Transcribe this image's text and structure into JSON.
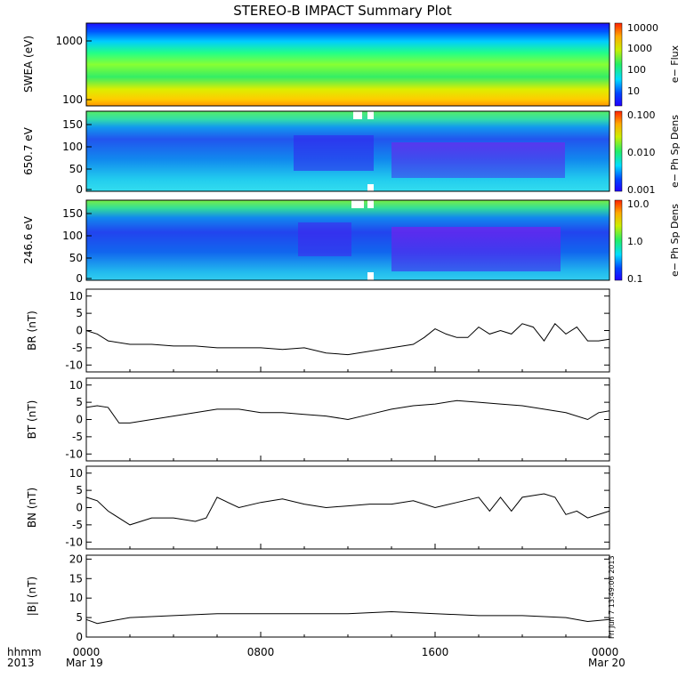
{
  "title": "STEREO-B IMPACT Summary Plot",
  "footer": {
    "hhmm": "hhmm",
    "year": "2013",
    "x_ticks": [
      "0000",
      "0800",
      "1600",
      "0000"
    ],
    "x_dates": [
      "Mar 19",
      "Mar 20"
    ],
    "stamp": "Fri Jun  7 13:49:06 2013"
  },
  "chart_data": [
    {
      "type": "heatmap",
      "ylabel": "SWEA (eV)",
      "yticks": [
        "1000",
        "100"
      ],
      "ylog": true,
      "colorbar": {
        "label": "e− Flux",
        "ticks": [
          "10000",
          "1000",
          "100",
          "10"
        ],
        "log": true,
        "range": [
          3,
          15000
        ]
      }
    },
    {
      "type": "heatmap",
      "ylabel": "650.7 eV",
      "yticks": [
        "150",
        "100",
        "50",
        "0"
      ],
      "ylim": [
        0,
        180
      ],
      "colorbar": {
        "label": "e− Ph Sp Dens",
        "ticks": [
          "0.100",
          "0.010",
          "0.001"
        ],
        "log": true,
        "range": [
          0.001,
          0.1
        ]
      }
    },
    {
      "type": "heatmap",
      "ylabel": "246.6 eV",
      "yticks": [
        "150",
        "100",
        "50",
        "0"
      ],
      "ylim": [
        0,
        180
      ],
      "colorbar": {
        "label": "e− Ph Sp Dens",
        "ticks": [
          "10.0",
          "1.0",
          "0.1"
        ],
        "log": true,
        "range": [
          0.1,
          10
        ]
      }
    },
    {
      "type": "line",
      "ylabel": "BR (nT)",
      "ylim": [
        -12,
        12
      ],
      "yticks": [
        "10",
        "5",
        "0",
        "-5",
        "-10"
      ],
      "x_hours": [
        0,
        0.5,
        1,
        2,
        3,
        4,
        5,
        6,
        7,
        8,
        9,
        10,
        11,
        12,
        13,
        14,
        15,
        15.5,
        16,
        16.5,
        17,
        17.5,
        18,
        18.5,
        19,
        19.5,
        20,
        20.5,
        21,
        21.5,
        22,
        22.5,
        23,
        23.5,
        24
      ],
      "values": [
        0,
        -1,
        -3,
        -4,
        -4,
        -4.5,
        -4.5,
        -5,
        -5,
        -5,
        -5.5,
        -5,
        -6.5,
        -7,
        -6,
        -5,
        -4,
        -2,
        0.5,
        -1,
        -2,
        -2,
        1,
        -1,
        0,
        -1,
        2,
        1,
        -3,
        2,
        -1,
        1,
        -3,
        -3,
        -2.5
      ]
    },
    {
      "type": "line",
      "ylabel": "BT (nT)",
      "ylim": [
        -12,
        12
      ],
      "yticks": [
        "10",
        "5",
        "0",
        "-5",
        "-10"
      ],
      "x_hours": [
        0,
        0.5,
        1,
        1.5,
        2,
        3,
        4,
        5,
        6,
        7,
        8,
        9,
        10,
        11,
        12,
        13,
        14,
        15,
        16,
        17,
        18,
        19,
        20,
        21,
        22,
        23,
        23.5,
        24
      ],
      "values": [
        3.5,
        4,
        3.5,
        -1,
        -1,
        0,
        1,
        2,
        3,
        3,
        2,
        2,
        1.5,
        1,
        0,
        1.5,
        3,
        4,
        4.5,
        5.5,
        5,
        4.5,
        4,
        3,
        2,
        0,
        2,
        2.5
      ]
    },
    {
      "type": "line",
      "ylabel": "BN (nT)",
      "ylim": [
        -12,
        12
      ],
      "yticks": [
        "10",
        "5",
        "0",
        "-5",
        "-10"
      ],
      "x_hours": [
        0,
        0.5,
        1,
        2,
        3,
        4,
        5,
        5.5,
        6,
        7,
        8,
        9,
        10,
        11,
        12,
        13,
        14,
        15,
        16,
        17,
        18,
        18.5,
        19,
        19.5,
        20,
        21,
        21.5,
        22,
        22.5,
        23,
        24
      ],
      "values": [
        3,
        2,
        -1,
        -5,
        -3,
        -3,
        -4,
        -3,
        3,
        0,
        1.5,
        2.5,
        1,
        0,
        0.5,
        1,
        1,
        2,
        0,
        1.5,
        3,
        -1,
        3,
        -1,
        3,
        4,
        3,
        -2,
        -1,
        -3,
        -1
      ]
    },
    {
      "type": "line",
      "ylabel": "|B| (nT)",
      "ylim": [
        0,
        21
      ],
      "yticks": [
        "20",
        "15",
        "10",
        "5",
        "0"
      ],
      "x_hours": [
        0,
        0.5,
        1,
        2,
        4,
        6,
        8,
        10,
        12,
        14,
        16,
        18,
        20,
        22,
        23,
        24
      ],
      "values": [
        4.5,
        3.5,
        4,
        5,
        5.5,
        6,
        6,
        6,
        6,
        6.5,
        6,
        5.5,
        5.5,
        5,
        4,
        4.5
      ]
    }
  ]
}
